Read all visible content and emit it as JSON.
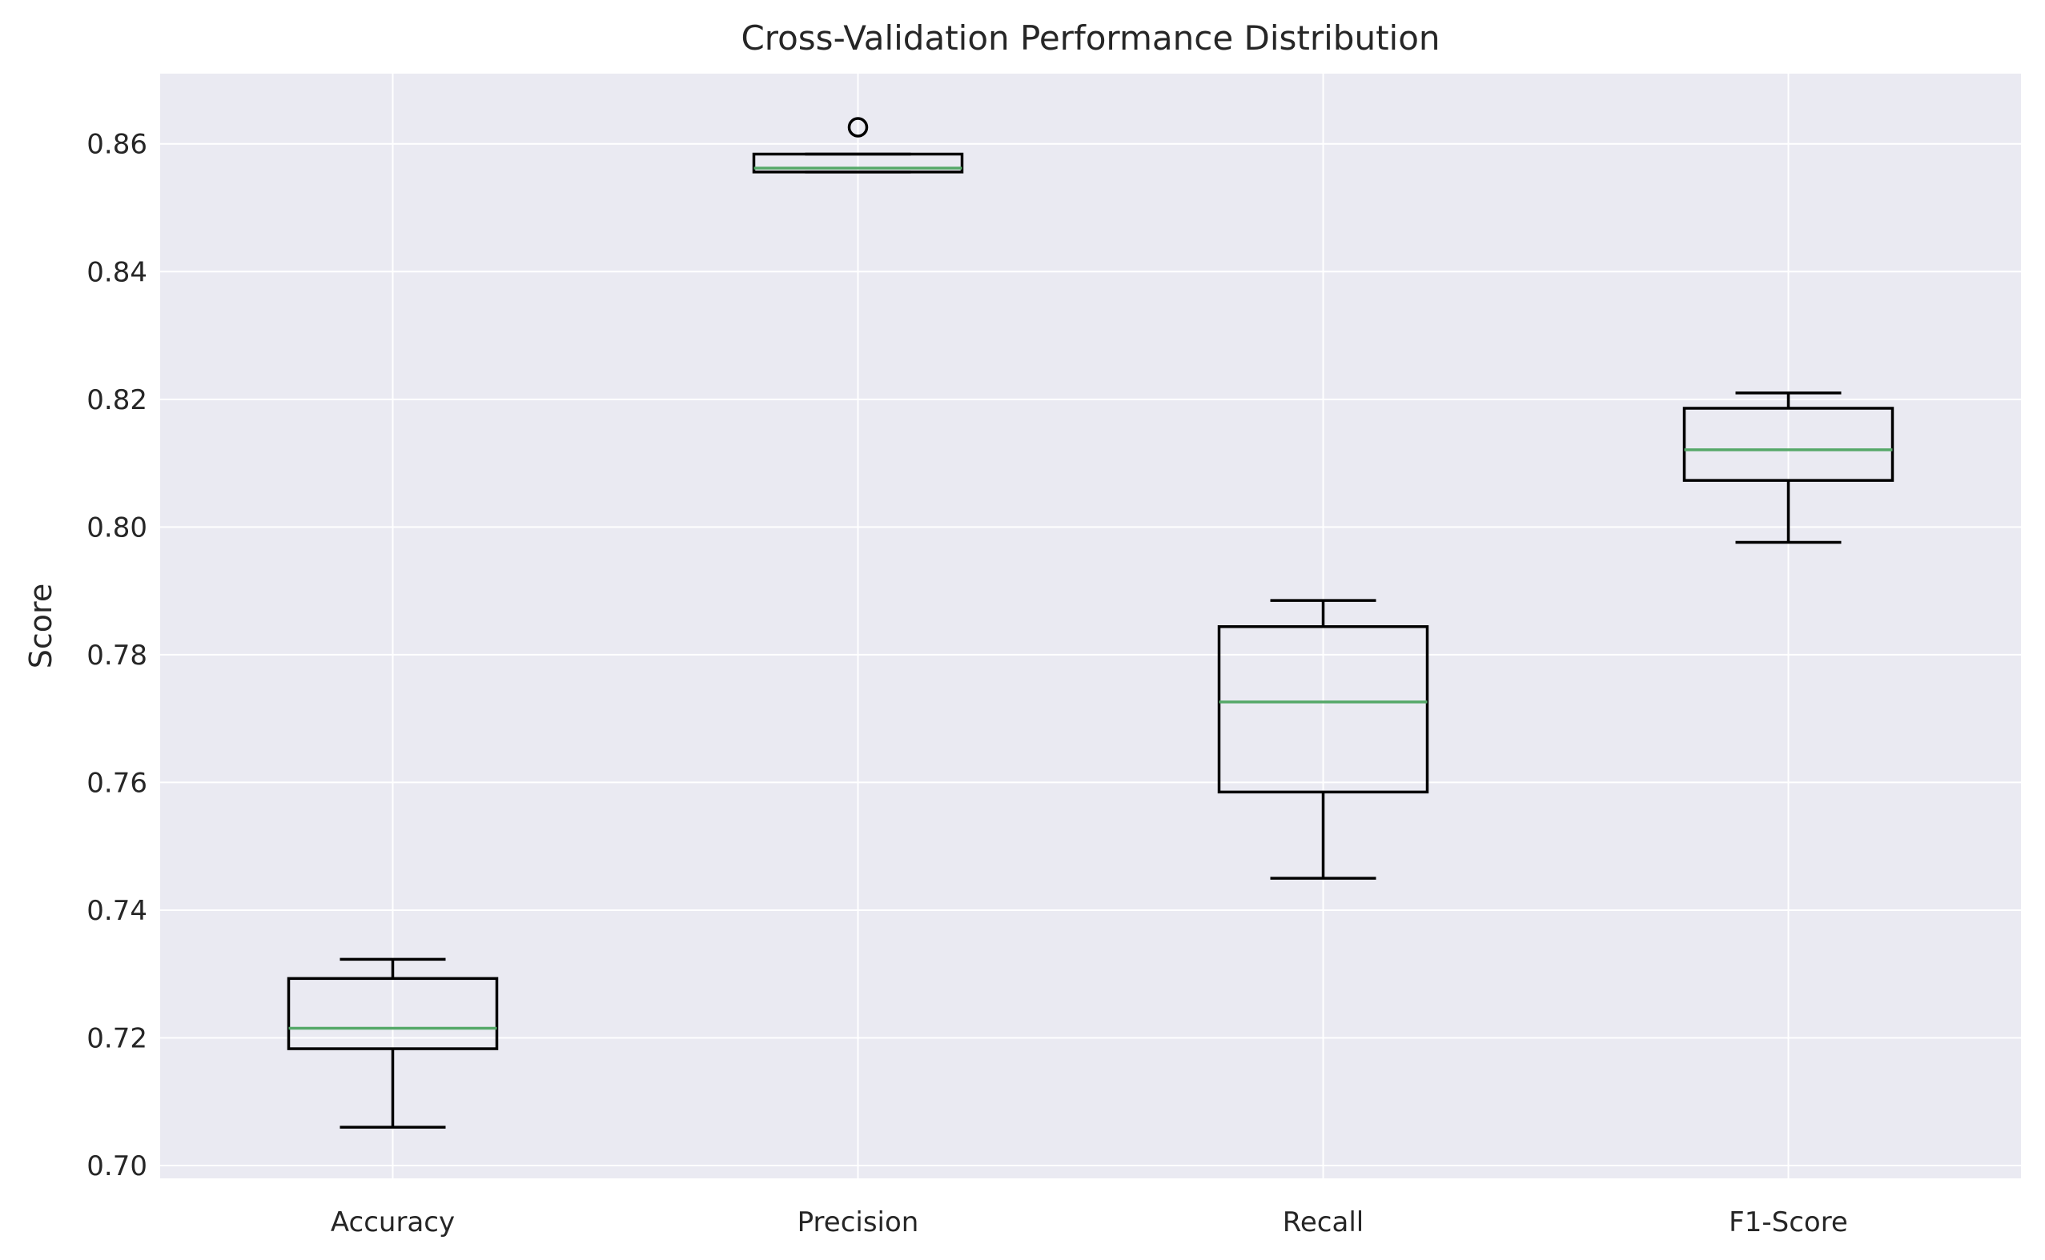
{
  "chart_data": {
    "type": "box",
    "title": "Cross-Validation Performance Distribution",
    "xlabel": "",
    "ylabel": "Score",
    "ylim": [
      0.698,
      0.871
    ],
    "yticks": [
      0.7,
      0.72,
      0.74,
      0.76,
      0.78,
      0.8,
      0.82,
      0.84,
      0.86
    ],
    "yticklabels": [
      "0.70",
      "0.72",
      "0.74",
      "0.76",
      "0.78",
      "0.80",
      "0.82",
      "0.84",
      "0.86"
    ],
    "grid": true,
    "categories": [
      "Accuracy",
      "Precision",
      "Recall",
      "F1-Score"
    ],
    "boxes": [
      {
        "category": "Accuracy",
        "whisker_low": 0.706,
        "q1": 0.7183,
        "median": 0.7215,
        "q3": 0.7293,
        "whisker_high": 0.7323,
        "outliers": []
      },
      {
        "category": "Precision",
        "whisker_low": 0.8556,
        "q1": 0.8556,
        "median": 0.8562,
        "q3": 0.8584,
        "whisker_high": 0.8584,
        "outliers": [
          0.8626
        ]
      },
      {
        "category": "Recall",
        "whisker_low": 0.745,
        "q1": 0.7585,
        "median": 0.7726,
        "q3": 0.7844,
        "whisker_high": 0.7885,
        "outliers": []
      },
      {
        "category": "F1-Score",
        "whisker_low": 0.7976,
        "q1": 0.8073,
        "median": 0.8121,
        "q3": 0.8186,
        "whisker_high": 0.821,
        "outliers": []
      }
    ],
    "colors": {
      "background": "#eaeaf2",
      "grid": "#ffffff",
      "box": "#000000",
      "median": "#55a868",
      "text": "#262626"
    }
  }
}
